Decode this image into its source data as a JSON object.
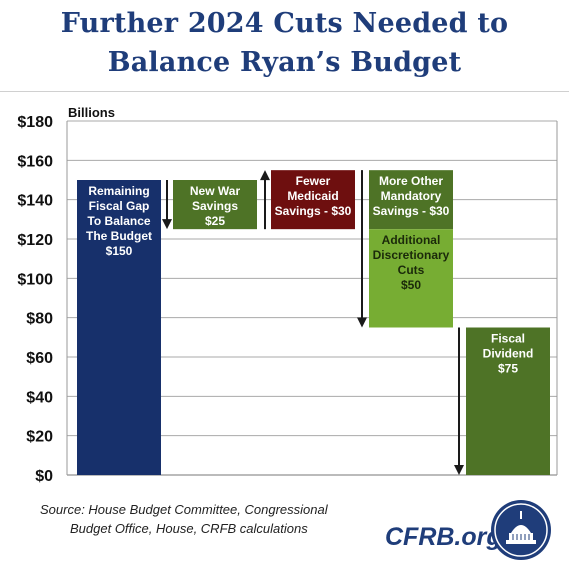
{
  "title": {
    "line1": "Further 2024 Cuts Needed to",
    "line2": "Balance Ryan’s Budget"
  },
  "chart_data": {
    "type": "bar",
    "subtype": "waterfall",
    "unit_label": "Billions",
    "ylim": [
      0,
      180
    ],
    "y_ticks": [
      0,
      20,
      40,
      60,
      80,
      100,
      120,
      140,
      160,
      180
    ],
    "y_tick_labels": [
      "$0",
      "$20",
      "$40",
      "$60",
      "$80",
      "$100",
      "$120",
      "$140",
      "$160",
      "$180"
    ],
    "grid": true,
    "bars": [
      {
        "label": [
          "Remaining",
          "Fiscal Gap",
          "To Balance",
          "The Budget",
          "$150"
        ],
        "bottom": 0,
        "top": 150,
        "color": "#17306b",
        "text_color": "#ffffff",
        "slot": 0
      },
      {
        "label": [
          "New War",
          "Savings",
          "$25"
        ],
        "bottom": 125,
        "top": 150,
        "color": "#4e7326",
        "text_color": "#ffffff",
        "slot": 1
      },
      {
        "label": [
          "Fewer",
          "Medicaid",
          "Savings - $30"
        ],
        "bottom": 125,
        "top": 155,
        "color": "#6e0f0f",
        "text_color": "#ffffff",
        "slot": 2
      },
      {
        "label": [
          "More Other",
          "Mandatory",
          "Savings - $30"
        ],
        "bottom": 125,
        "top": 155,
        "color": "#4e7326",
        "text_color": "#ffffff",
        "slot": 3
      },
      {
        "label": [
          "Additional",
          "Discretionary",
          "Cuts",
          "$50"
        ],
        "bottom": 75,
        "top": 125,
        "color": "#77ad33",
        "text_color": "#1b2a0a",
        "slot": 3
      },
      {
        "label": [
          "Fiscal",
          "Dividend",
          "$75"
        ],
        "bottom": 0,
        "top": 75,
        "color": "#4e7326",
        "text_color": "#ffffff",
        "slot": 4
      }
    ],
    "arrows": [
      {
        "from": 150,
        "to": 125,
        "direction": "down",
        "between": [
          0,
          1
        ]
      },
      {
        "from": 125,
        "to": 155,
        "direction": "up",
        "between": [
          1,
          2
        ]
      },
      {
        "from": 155,
        "to": 75,
        "direction": "down",
        "between": [
          2,
          3
        ]
      },
      {
        "from": 75,
        "to": 0,
        "direction": "down",
        "between": [
          3,
          4
        ]
      }
    ]
  },
  "source": {
    "line1": "Source: House Budget Committee, Congressional",
    "line2": "Budget Office, House, CRFB calculations"
  },
  "brand": "CFRB.org",
  "colors": {
    "title": "#1f3d7a",
    "brand": "#1f3d7a"
  },
  "icons": {
    "seal": "capitol-dome-seal-icon"
  }
}
